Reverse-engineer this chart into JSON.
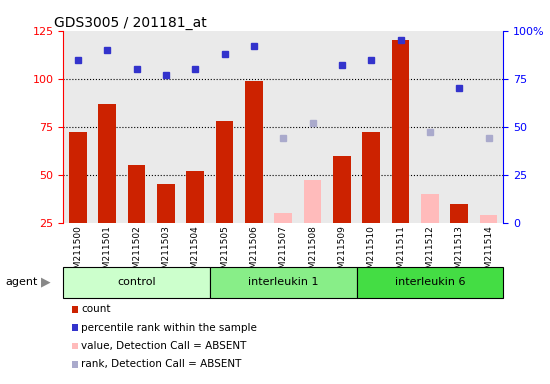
{
  "title": "GDS3005 / 201181_at",
  "samples": [
    "GSM211500",
    "GSM211501",
    "GSM211502",
    "GSM211503",
    "GSM211504",
    "GSM211505",
    "GSM211506",
    "GSM211507",
    "GSM211508",
    "GSM211509",
    "GSM211510",
    "GSM211511",
    "GSM211512",
    "GSM211513",
    "GSM211514"
  ],
  "groups": [
    {
      "name": "control",
      "indices": [
        0,
        1,
        2,
        3,
        4
      ],
      "color": "#ccffcc"
    },
    {
      "name": "interleukin 1",
      "indices": [
        5,
        6,
        7,
        8,
        9
      ],
      "color": "#88ee88"
    },
    {
      "name": "interleukin 6",
      "indices": [
        10,
        11,
        12,
        13,
        14
      ],
      "color": "#44dd44"
    }
  ],
  "bar_values": [
    72,
    87,
    55,
    45,
    52,
    78,
    99,
    null,
    null,
    60,
    72,
    120,
    null,
    35,
    null
  ],
  "bar_absent_values": [
    null,
    null,
    null,
    null,
    null,
    null,
    null,
    30,
    47,
    null,
    null,
    null,
    40,
    null,
    29
  ],
  "rank_values": [
    85,
    90,
    80,
    77,
    80,
    88,
    92,
    null,
    null,
    82,
    85,
    95,
    null,
    70,
    null
  ],
  "rank_absent_values": [
    null,
    null,
    null,
    null,
    null,
    null,
    null,
    44,
    52,
    null,
    null,
    null,
    47,
    null,
    44
  ],
  "bar_color": "#cc2200",
  "bar_absent_color": "#ffbbbb",
  "rank_color": "#3333cc",
  "rank_absent_color": "#aaaacc",
  "ylim_left": [
    25,
    125
  ],
  "ylim_right": [
    0,
    100
  ],
  "yticks_left": [
    25,
    50,
    75,
    100,
    125
  ],
  "yticks_right": [
    0,
    25,
    50,
    75,
    100
  ],
  "ytick_labels_right": [
    "0",
    "25",
    "50",
    "75",
    "100%"
  ],
  "hlines": [
    50,
    75,
    100
  ],
  "legend": [
    {
      "label": "count",
      "color": "#cc2200"
    },
    {
      "label": "percentile rank within the sample",
      "color": "#3333cc"
    },
    {
      "label": "value, Detection Call = ABSENT",
      "color": "#ffbbbb"
    },
    {
      "label": "rank, Detection Call = ABSENT",
      "color": "#aaaacc"
    }
  ],
  "col_bg_color": "#cccccc",
  "plot_bg_color": "#ffffff"
}
